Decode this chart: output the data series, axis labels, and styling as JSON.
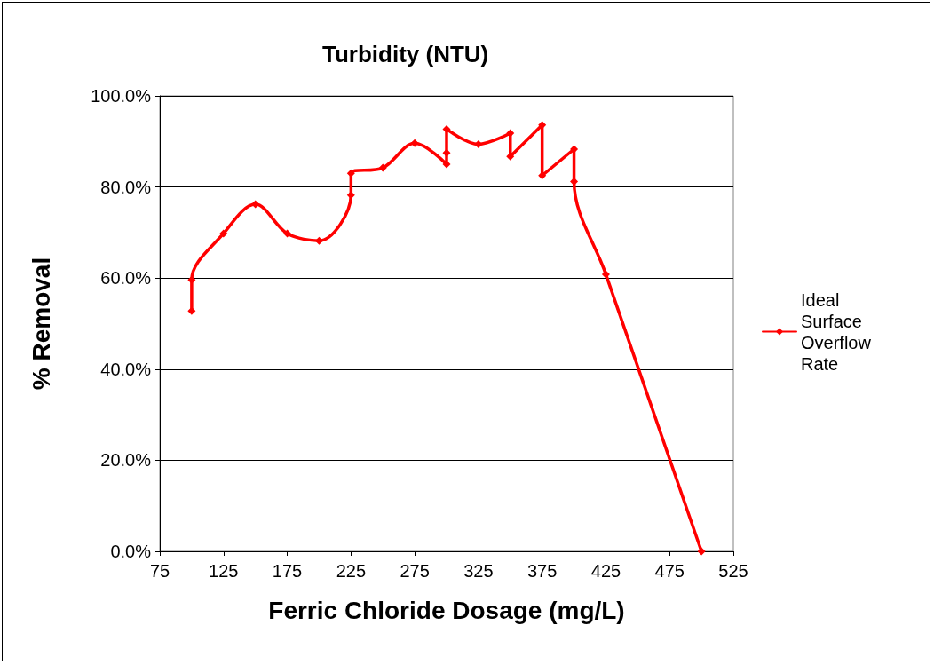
{
  "chart_data": {
    "type": "line",
    "title": "Turbidity (NTU)",
    "xlabel": "Ferric Chloride Dosage (mg/L)",
    "ylabel": "% Removal",
    "x": [
      100,
      100,
      125,
      150,
      175,
      200,
      225,
      225,
      250,
      275,
      300,
      300,
      300,
      325,
      350,
      350,
      375,
      375,
      400,
      400,
      425,
      500
    ],
    "series": [
      {
        "name": "Ideal Surface Overflow Rate",
        "color": "#ff0000",
        "values": [
          52.8,
          59.6,
          69.8,
          76.2,
          69.8,
          68.2,
          78.2,
          83.0,
          84.2,
          89.6,
          85.0,
          87.5,
          92.7,
          89.4,
          91.8,
          86.7,
          93.6,
          82.5,
          88.3,
          81.2,
          60.8,
          0
        ]
      }
    ],
    "xlim": [
      75,
      525
    ],
    "xticks": [
      75,
      125,
      175,
      225,
      275,
      325,
      375,
      425,
      475,
      525
    ],
    "ylim": [
      0,
      100
    ],
    "yticks": [
      {
        "value": 0,
        "label": "0.0%"
      },
      {
        "value": 20,
        "label": "20.0%"
      },
      {
        "value": 40,
        "label": "40.0%"
      },
      {
        "value": 60,
        "label": "60.0%"
      },
      {
        "value": 80,
        "label": "80.0%"
      },
      {
        "value": 100,
        "label": "100.0%"
      }
    ],
    "grid": "y",
    "legend": "right",
    "marker": "diamond",
    "line_style": "solid"
  }
}
